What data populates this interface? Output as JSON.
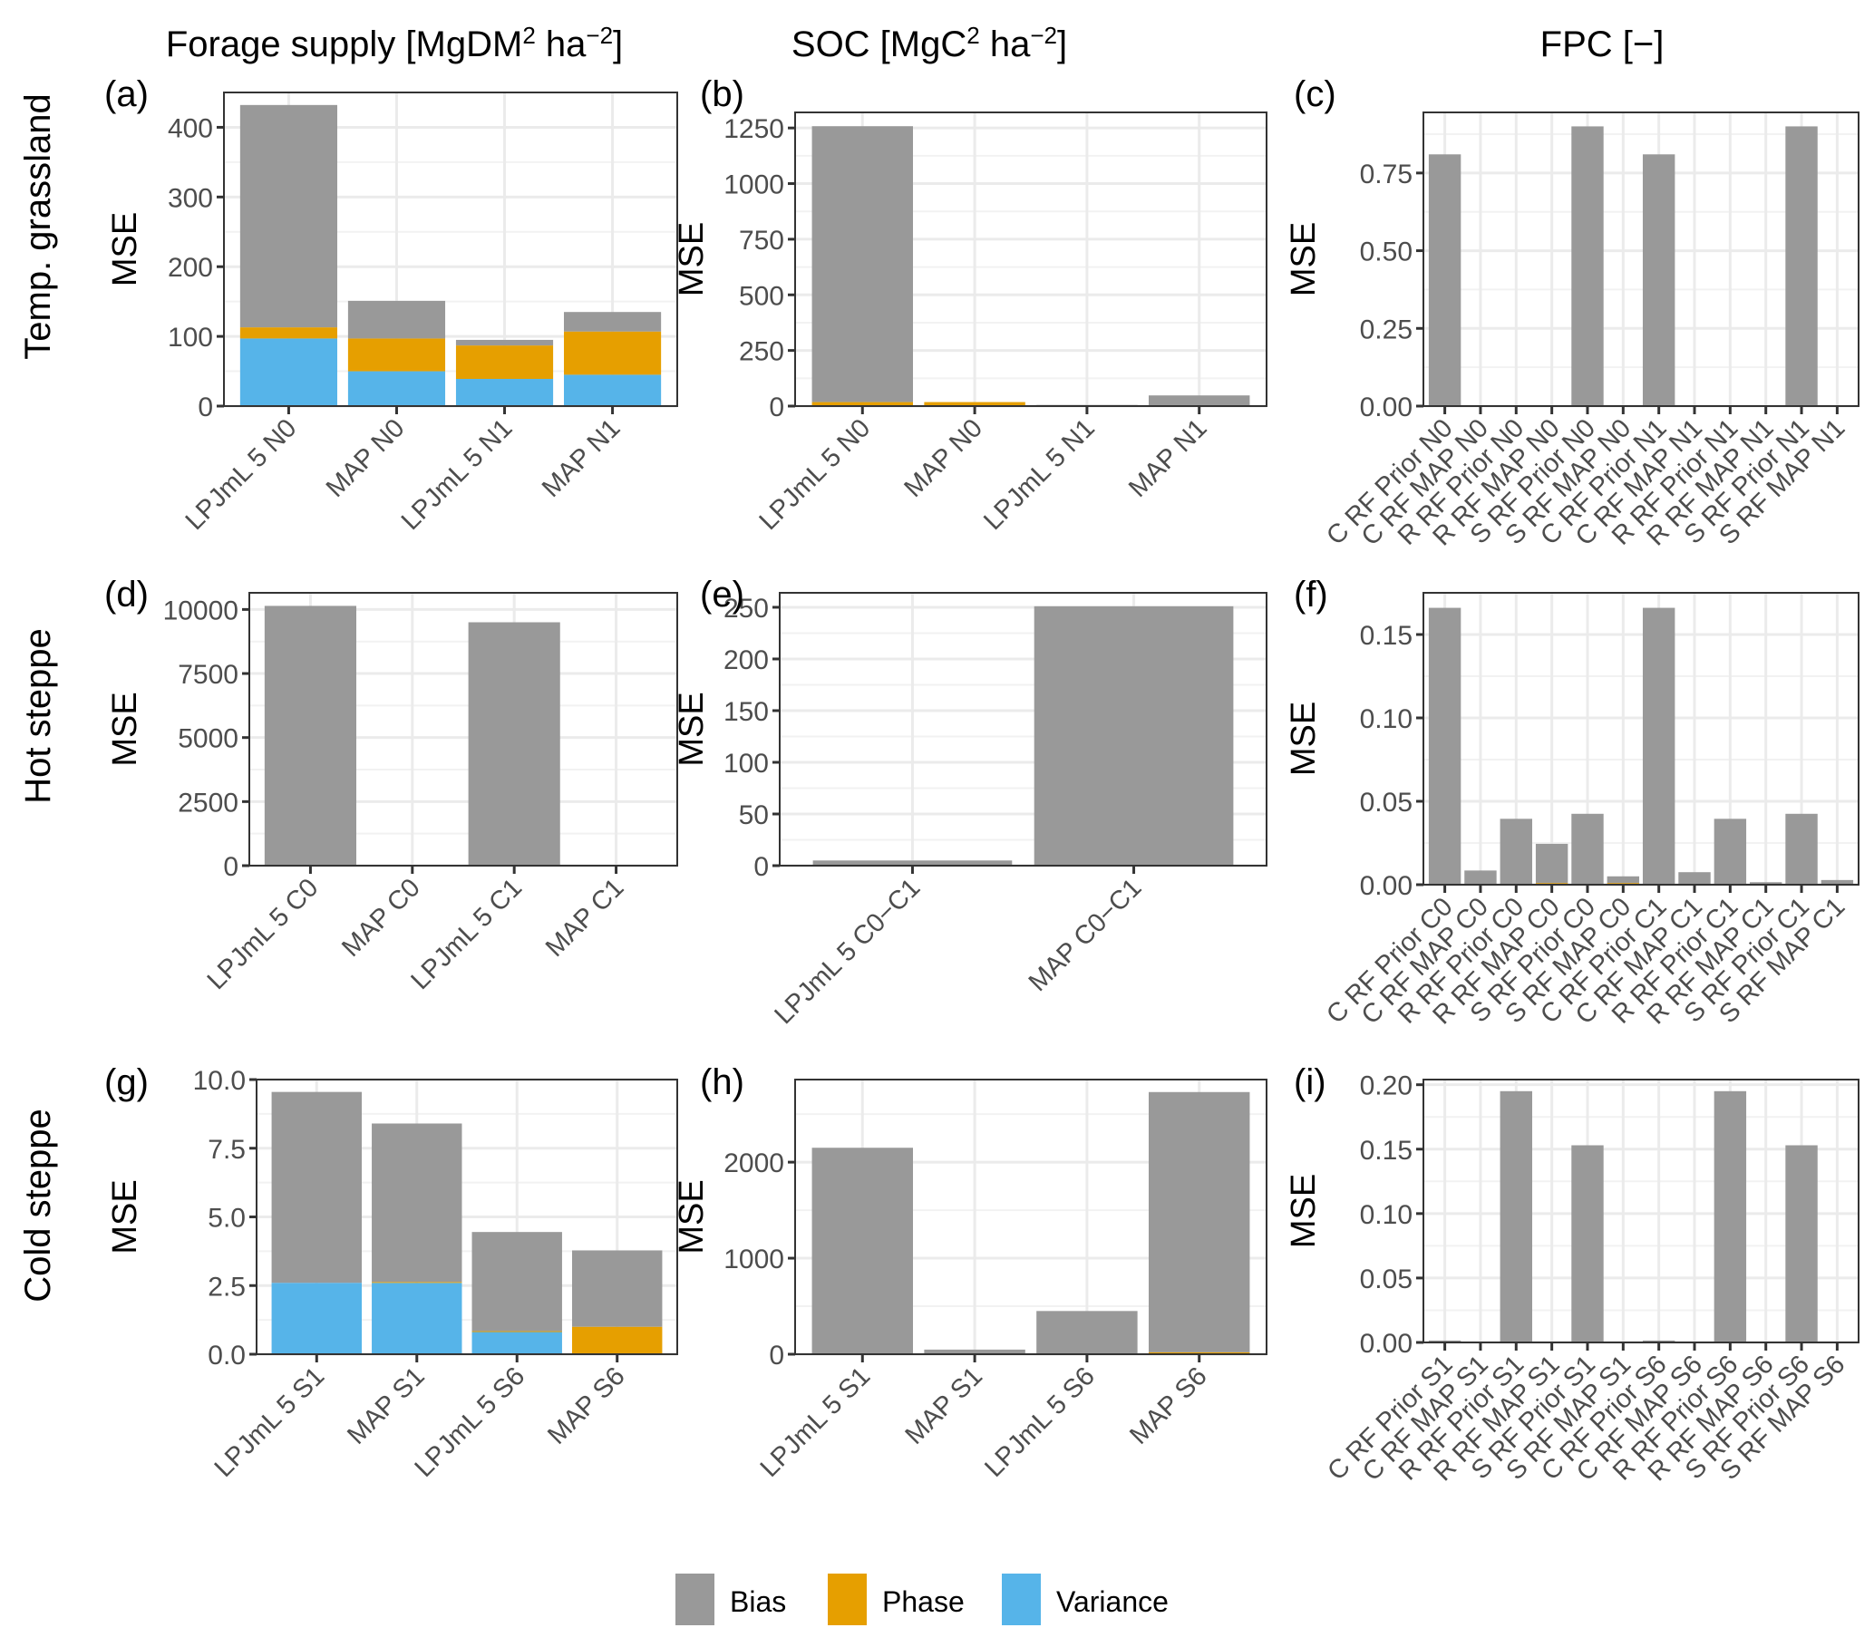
{
  "figure": {
    "column_titles": [
      {
        "main": "Forage supply [MgDM",
        "sup1": "2",
        "mid": " ha",
        "sup2": "−2",
        "end": "]"
      },
      {
        "main": "SOC [MgC",
        "sup1": "2",
        "mid": " ha",
        "sup2": "−2",
        "end": "]"
      },
      {
        "main": "FPC [−]",
        "sup1": "",
        "mid": "",
        "sup2": "",
        "end": ""
      }
    ],
    "row_titles": [
      "Temp. grassland",
      "Hot steppe",
      "Cold steppe"
    ],
    "legend": {
      "position": "bottom",
      "items": [
        {
          "label": "Bias",
          "color": "#999999"
        },
        {
          "label": "Phase",
          "color": "#E69F00"
        },
        {
          "label": "Variance",
          "color": "#56B4E9"
        }
      ]
    }
  },
  "chart_data": [
    {
      "panel": "(a)",
      "type": "bar",
      "stacked": true,
      "ylabel": "MSE",
      "ylim": [
        0,
        450
      ],
      "yticks": [
        0,
        100,
        200,
        300,
        400
      ],
      "ytick_labels": [
        "0",
        "100",
        "200",
        "300",
        "400"
      ],
      "categories": [
        "LPJmL 5 N0",
        "MAP N0",
        "LPJmL 5 N1",
        "MAP N1"
      ],
      "series": [
        {
          "name": "Variance",
          "values": [
            97,
            50,
            39,
            45
          ]
        },
        {
          "name": "Phase",
          "values": [
            16,
            47,
            48,
            62
          ]
        },
        {
          "name": "Bias",
          "values": [
            319,
            54,
            8,
            28
          ]
        }
      ],
      "grid": true
    },
    {
      "panel": "(b)",
      "type": "bar",
      "stacked": true,
      "ylabel": "MSE",
      "ylim": [
        0,
        1320
      ],
      "yticks": [
        0,
        250,
        500,
        750,
        1000,
        1250
      ],
      "ytick_labels": [
        "0",
        "250",
        "500",
        "750",
        "1000",
        "1250"
      ],
      "categories": [
        "LPJmL 5 N0",
        "MAP N0",
        "LPJmL 5 N1",
        "MAP N1"
      ],
      "series": [
        {
          "name": "Variance",
          "values": [
            0,
            0,
            0,
            0
          ]
        },
        {
          "name": "Phase",
          "values": [
            18,
            18,
            0,
            0
          ]
        },
        {
          "name": "Bias",
          "values": [
            1240,
            0,
            5,
            48
          ]
        }
      ],
      "grid": true
    },
    {
      "panel": "(c)",
      "type": "bar",
      "stacked": true,
      "ylabel": "MSE",
      "ylim": [
        0,
        0.945
      ],
      "yticks": [
        0,
        0.25,
        0.5,
        0.75
      ],
      "ytick_labels": [
        "0.00",
        "0.25",
        "0.50",
        "0.75"
      ],
      "categories": [
        "C RF Prior N0",
        "C RF MAP N0",
        "R RF Prior N0",
        "R RF MAP N0",
        "S RF Prior N0",
        "S RF MAP N0",
        "C RF Prior N1",
        "C RF MAP N1",
        "R RF Prior N1",
        "R RF MAP N1",
        "S RF Prior N1",
        "S RF MAP N1"
      ],
      "series": [
        {
          "name": "Variance",
          "values": [
            0,
            0,
            0,
            0,
            0,
            0,
            0,
            0,
            0,
            0,
            0,
            0
          ]
        },
        {
          "name": "Phase",
          "values": [
            0,
            0,
            0,
            0,
            0,
            0,
            0,
            0,
            0,
            0,
            0,
            0
          ]
        },
        {
          "name": "Bias",
          "values": [
            0.81,
            0,
            0,
            0,
            0.9,
            0,
            0.81,
            0,
            0,
            0,
            0.9,
            0
          ]
        }
      ],
      "grid": true
    },
    {
      "panel": "(d)",
      "type": "bar",
      "stacked": true,
      "ylabel": "MSE",
      "ylim": [
        0,
        10650
      ],
      "yticks": [
        0,
        2500,
        5000,
        7500,
        10000
      ],
      "ytick_labels": [
        "0",
        "2500",
        "5000",
        "7500",
        "10000"
      ],
      "categories": [
        "LPJmL 5 C0",
        "MAP C0",
        "LPJmL 5 C1",
        "MAP C1"
      ],
      "series": [
        {
          "name": "Variance",
          "values": [
            0,
            0,
            0,
            0
          ]
        },
        {
          "name": "Phase",
          "values": [
            0,
            0,
            0,
            0
          ]
        },
        {
          "name": "Bias",
          "values": [
            10140,
            0,
            9500,
            0
          ]
        }
      ],
      "grid": true
    },
    {
      "panel": "(e)",
      "type": "bar",
      "stacked": true,
      "ylabel": "MSE",
      "ylim": [
        0,
        264
      ],
      "yticks": [
        0,
        50,
        100,
        150,
        200,
        250
      ],
      "ytick_labels": [
        "0",
        "50",
        "100",
        "150",
        "200",
        "250"
      ],
      "categories": [
        "LPJmL 5 C0−C1",
        "MAP C0−C1"
      ],
      "series": [
        {
          "name": "Variance",
          "values": [
            0,
            0
          ]
        },
        {
          "name": "Phase",
          "values": [
            0,
            0
          ]
        },
        {
          "name": "Bias",
          "values": [
            5,
            251
          ]
        }
      ],
      "grid": true
    },
    {
      "panel": "(f)",
      "type": "bar",
      "stacked": true,
      "ylabel": "MSE",
      "ylim": [
        0,
        0.175
      ],
      "yticks": [
        0,
        0.05,
        0.1,
        0.15
      ],
      "ytick_labels": [
        "0.00",
        "0.05",
        "0.10",
        "0.15"
      ],
      "categories": [
        "C RF Prior C0",
        "C RF MAP C0",
        "R RF Prior C0",
        "R RF MAP C0",
        "S RF Prior C0",
        "S RF MAP C0",
        "C RF Prior C1",
        "C RF MAP C1",
        "R RF Prior C1",
        "R RF MAP C1",
        "S RF Prior C1",
        "S RF MAP C1"
      ],
      "series": [
        {
          "name": "Variance",
          "values": [
            0,
            0,
            0,
            0,
            0,
            0,
            0,
            0,
            0,
            0,
            0,
            0
          ]
        },
        {
          "name": "Phase",
          "values": [
            0,
            0,
            0,
            0.001,
            0,
            0.001,
            0,
            0,
            0,
            0,
            0,
            0
          ]
        },
        {
          "name": "Bias",
          "values": [
            0.166,
            0.0085,
            0.0395,
            0.0235,
            0.0425,
            0.004,
            0.166,
            0.0075,
            0.0395,
            0.0015,
            0.0425,
            0.0028
          ]
        }
      ],
      "grid": true
    },
    {
      "panel": "(g)",
      "type": "bar",
      "stacked": true,
      "ylabel": "MSE",
      "ylim": [
        0,
        10
      ],
      "yticks": [
        0,
        2.5,
        5,
        7.5,
        10
      ],
      "ytick_labels": [
        "0.0",
        "2.5",
        "5.0",
        "7.5",
        "10.0"
      ],
      "categories": [
        "LPJmL 5 S1",
        "MAP S1",
        "LPJmL 5 S6",
        "MAP S6"
      ],
      "series": [
        {
          "name": "Variance",
          "values": [
            2.6,
            2.6,
            0.82,
            0
          ]
        },
        {
          "name": "Phase",
          "values": [
            0,
            0.03,
            0.02,
            1.0
          ]
        },
        {
          "name": "Bias",
          "values": [
            6.95,
            5.77,
            3.61,
            2.78
          ]
        }
      ],
      "grid": true
    },
    {
      "panel": "(h)",
      "type": "bar",
      "stacked": true,
      "ylabel": "MSE",
      "ylim": [
        0,
        2860
      ],
      "yticks": [
        0,
        1000,
        2000
      ],
      "ytick_labels": [
        "0",
        "1000",
        "2000"
      ],
      "categories": [
        "LPJmL 5 S1",
        "MAP S1",
        "LPJmL 5 S6",
        "MAP S6"
      ],
      "series": [
        {
          "name": "Variance",
          "values": [
            0,
            0,
            0,
            0
          ]
        },
        {
          "name": "Phase",
          "values": [
            0,
            0,
            0,
            20
          ]
        },
        {
          "name": "Bias",
          "values": [
            2150,
            48,
            450,
            2710
          ]
        }
      ],
      "grid": true
    },
    {
      "panel": "(i)",
      "type": "bar",
      "stacked": true,
      "ylabel": "MSE",
      "ylim": [
        0,
        0.204
      ],
      "yticks": [
        0,
        0.05,
        0.1,
        0.15,
        0.2
      ],
      "ytick_labels": [
        "0.00",
        "0.05",
        "0.10",
        "0.15",
        "0.20"
      ],
      "categories": [
        "C RF Prior S1",
        "C RF MAP S1",
        "R RF Prior S1",
        "R RF MAP S1",
        "S RF Prior S1",
        "S RF MAP S1",
        "C RF Prior S6",
        "C RF MAP S6",
        "R RF Prior S6",
        "R RF MAP S6",
        "S RF Prior S6",
        "S RF MAP S6"
      ],
      "series": [
        {
          "name": "Variance",
          "values": [
            0,
            0,
            0,
            0,
            0,
            0,
            0,
            0,
            0,
            0,
            0,
            0
          ]
        },
        {
          "name": "Phase",
          "values": [
            0,
            0,
            0,
            0,
            0,
            0,
            0,
            0,
            0,
            0,
            0,
            0
          ]
        },
        {
          "name": "Bias",
          "values": [
            0.0015,
            0,
            0.195,
            0,
            0.153,
            0,
            0.0015,
            0,
            0.195,
            0,
            0.153,
            0
          ]
        }
      ],
      "grid": true
    }
  ]
}
